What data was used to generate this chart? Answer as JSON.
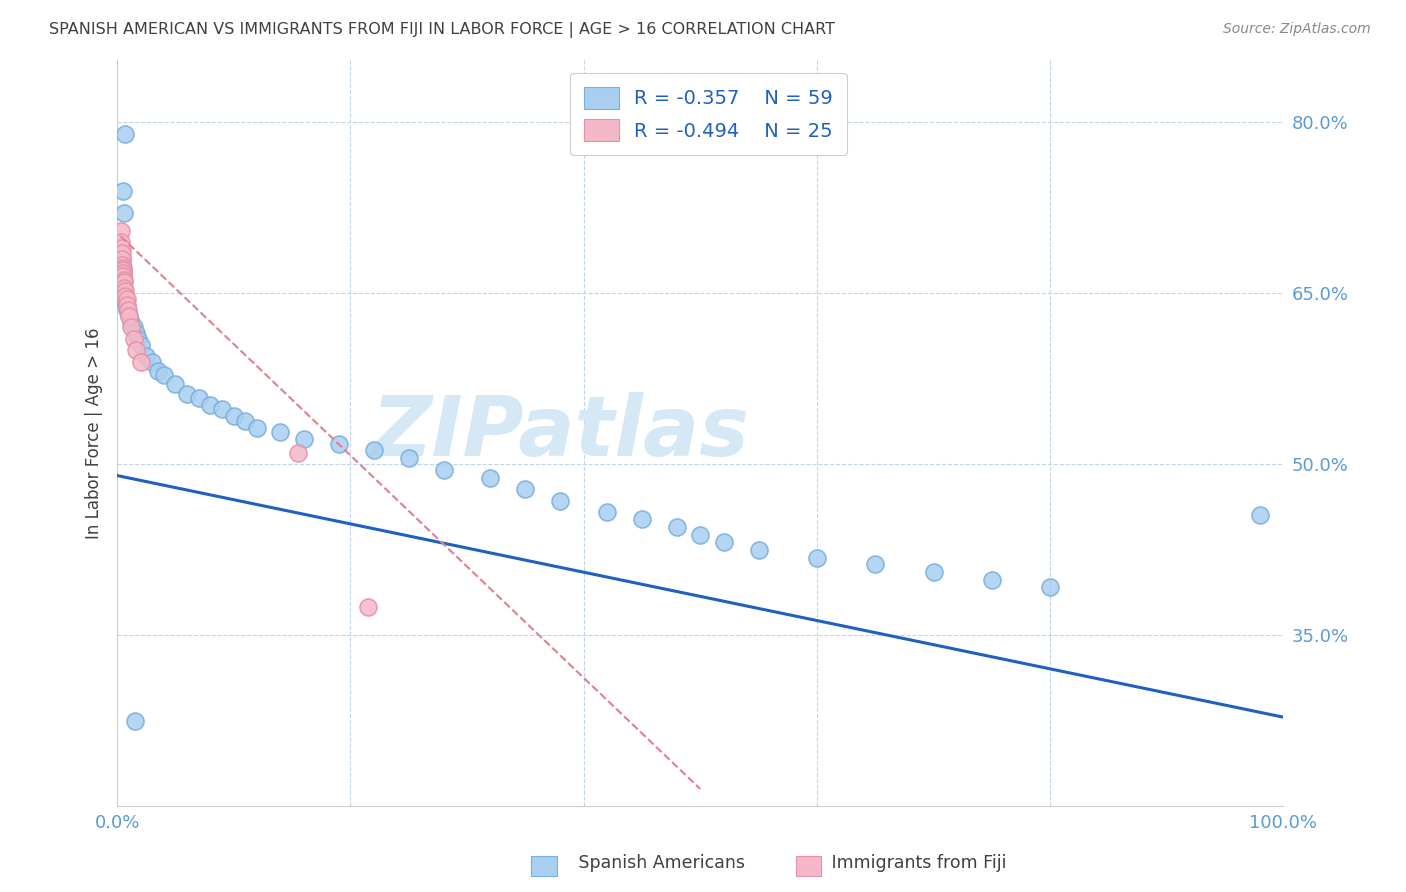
{
  "title": "SPANISH AMERICAN VS IMMIGRANTS FROM FIJI IN LABOR FORCE | AGE > 16 CORRELATION CHART",
  "source": "Source: ZipAtlas.com",
  "ylabel": "In Labor Force | Age > 16",
  "xlim": [
    0.0,
    1.0
  ],
  "ylim": [
    0.2,
    0.855
  ],
  "legend_r1": "-0.357",
  "legend_n1": "59",
  "legend_r2": "-0.494",
  "legend_n2": "25",
  "blue_color": "#a8cff0",
  "blue_edge_color": "#7aaedc",
  "pink_color": "#f5b8c8",
  "pink_edge_color": "#e890a8",
  "blue_line_color": "#2060c0",
  "pink_line_color": "#e08090",
  "legend_text_color": "#2060c0",
  "tick_label_color": "#5b9bd5",
  "title_color": "#404040",
  "source_color": "#888888",
  "watermark": "ZIPatlas",
  "watermark_color": "#d5e8f5",
  "grid_color": "#c0d4e8",
  "spanish_x": [
    0.007,
    0.005,
    0.006,
    0.003,
    0.004,
    0.004,
    0.004,
    0.005,
    0.004,
    0.004,
    0.004,
    0.005,
    0.005,
    0.004,
    0.005,
    0.006,
    0.007,
    0.008,
    0.008,
    0.01,
    0.012,
    0.014,
    0.016,
    0.018,
    0.02,
    0.025,
    0.03,
    0.035,
    0.04,
    0.05,
    0.06,
    0.07,
    0.08,
    0.09,
    0.1,
    0.11,
    0.12,
    0.14,
    0.16,
    0.19,
    0.22,
    0.25,
    0.28,
    0.32,
    0.35,
    0.38,
    0.42,
    0.45,
    0.48,
    0.5,
    0.52,
    0.55,
    0.6,
    0.65,
    0.7,
    0.75,
    0.8,
    0.98,
    0.015
  ],
  "spanish_y": [
    0.79,
    0.74,
    0.72,
    0.685,
    0.68,
    0.675,
    0.672,
    0.67,
    0.668,
    0.665,
    0.663,
    0.66,
    0.655,
    0.652,
    0.648,
    0.645,
    0.642,
    0.638,
    0.635,
    0.63,
    0.625,
    0.62,
    0.615,
    0.61,
    0.605,
    0.595,
    0.59,
    0.582,
    0.578,
    0.57,
    0.562,
    0.558,
    0.552,
    0.548,
    0.542,
    0.538,
    0.532,
    0.528,
    0.522,
    0.518,
    0.512,
    0.505,
    0.495,
    0.488,
    0.478,
    0.468,
    0.458,
    0.452,
    0.445,
    0.438,
    0.432,
    0.425,
    0.418,
    0.412,
    0.405,
    0.398,
    0.392,
    0.455,
    0.275
  ],
  "fiji_x": [
    0.003,
    0.003,
    0.004,
    0.004,
    0.004,
    0.004,
    0.005,
    0.005,
    0.005,
    0.005,
    0.006,
    0.006,
    0.006,
    0.007,
    0.007,
    0.008,
    0.008,
    0.009,
    0.01,
    0.012,
    0.014,
    0.016,
    0.02,
    0.155,
    0.215
  ],
  "fiji_y": [
    0.705,
    0.695,
    0.69,
    0.685,
    0.68,
    0.675,
    0.672,
    0.67,
    0.668,
    0.665,
    0.662,
    0.66,
    0.655,
    0.652,
    0.648,
    0.645,
    0.64,
    0.635,
    0.63,
    0.62,
    0.61,
    0.6,
    0.59,
    0.51,
    0.375
  ],
  "blue_trendline_x": [
    0.0,
    1.0
  ],
  "blue_trendline_y": [
    0.49,
    0.278
  ],
  "pink_trendline_x": [
    0.003,
    0.5
  ],
  "pink_trendline_y": [
    0.7,
    0.215
  ]
}
